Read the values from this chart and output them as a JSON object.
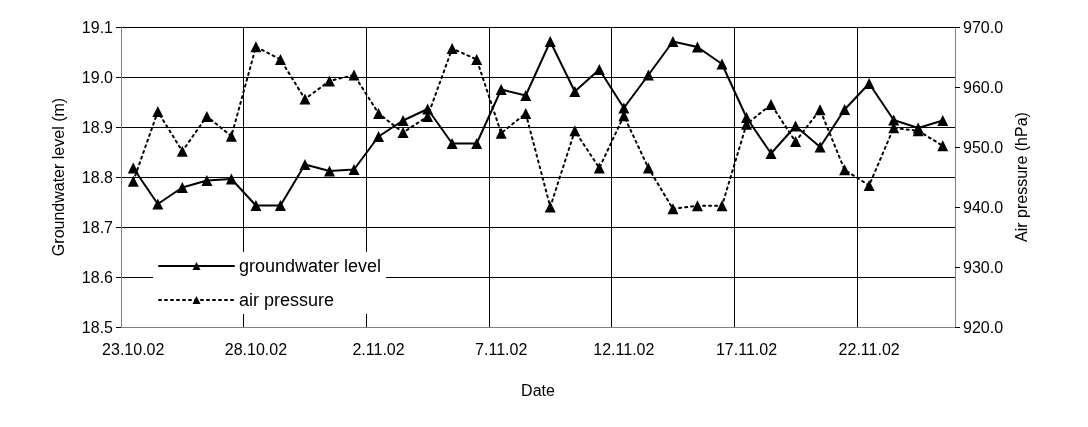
{
  "chart_data": {
    "type": "line",
    "xlabel": "Date",
    "ylabel": "Groundwater level (m)",
    "y2label": "Air pressure (hPa)",
    "categories": [
      "23.10.02",
      null,
      null,
      null,
      null,
      "28.10.02",
      null,
      null,
      null,
      null,
      "2.11.02",
      null,
      null,
      null,
      null,
      "7.11.02",
      null,
      null,
      null,
      null,
      "12.11.02",
      null,
      null,
      null,
      null,
      "17.11.02",
      null,
      null,
      null,
      null,
      "22.11.02",
      null,
      null,
      null
    ],
    "series": [
      {
        "name": "groundwater level",
        "color": "#000000",
        "line_style": "solid",
        "values": [
          18.818,
          18.746,
          18.779,
          18.793,
          18.796,
          18.743,
          18.743,
          18.825,
          18.812,
          18.815,
          18.881,
          18.913,
          18.936,
          18.867,
          18.867,
          18.975,
          18.963,
          19.071,
          18.971,
          19.015,
          18.938,
          19.004,
          19.071,
          19.06,
          19.026,
          18.919,
          18.847,
          18.902,
          18.86,
          18.935,
          18.987,
          18.914,
          18.898,
          18.913
        ]
      },
      {
        "name": "air pressure",
        "color": "#000000",
        "line_style": "dotted",
        "axis": "y2",
        "values": [
          944.3,
          955.9,
          949.3,
          955.1,
          951.8,
          966.7,
          964.6,
          958.0,
          961.0,
          962.0,
          955.6,
          952.4,
          955.1,
          966.4,
          964.6,
          952.3,
          955.6,
          940.0,
          952.7,
          946.5,
          955.2,
          946.5,
          939.7,
          940.2,
          940.2,
          953.8,
          957.1,
          950.9,
          956.2,
          946.2,
          943.6,
          953.2,
          952.7,
          950.2
        ]
      }
    ],
    "ylim": [
      18.5,
      19.1
    ],
    "yticks": [
      {
        "value": 18.5,
        "label": "18.5"
      },
      {
        "value": 18.6,
        "label": "18.6"
      },
      {
        "value": 18.7,
        "label": "18.7"
      },
      {
        "value": 18.8,
        "label": "18.8"
      },
      {
        "value": 18.9,
        "label": "18.9"
      },
      {
        "value": 19,
        "label": "19.0"
      },
      {
        "value": 19.1,
        "label": "19.1"
      }
    ],
    "y2lim": [
      920,
      970
    ],
    "y2ticks": [
      {
        "value": 920,
        "label": "920.0"
      },
      {
        "value": 930,
        "label": "930.0"
      },
      {
        "value": 940,
        "label": "940.0"
      },
      {
        "value": 950,
        "label": "950.0"
      },
      {
        "value": 960,
        "label": "960.0"
      },
      {
        "value": 970,
        "label": "970.0"
      }
    ],
    "grid": true,
    "legend": "bottom left",
    "marker": "triangle"
  }
}
